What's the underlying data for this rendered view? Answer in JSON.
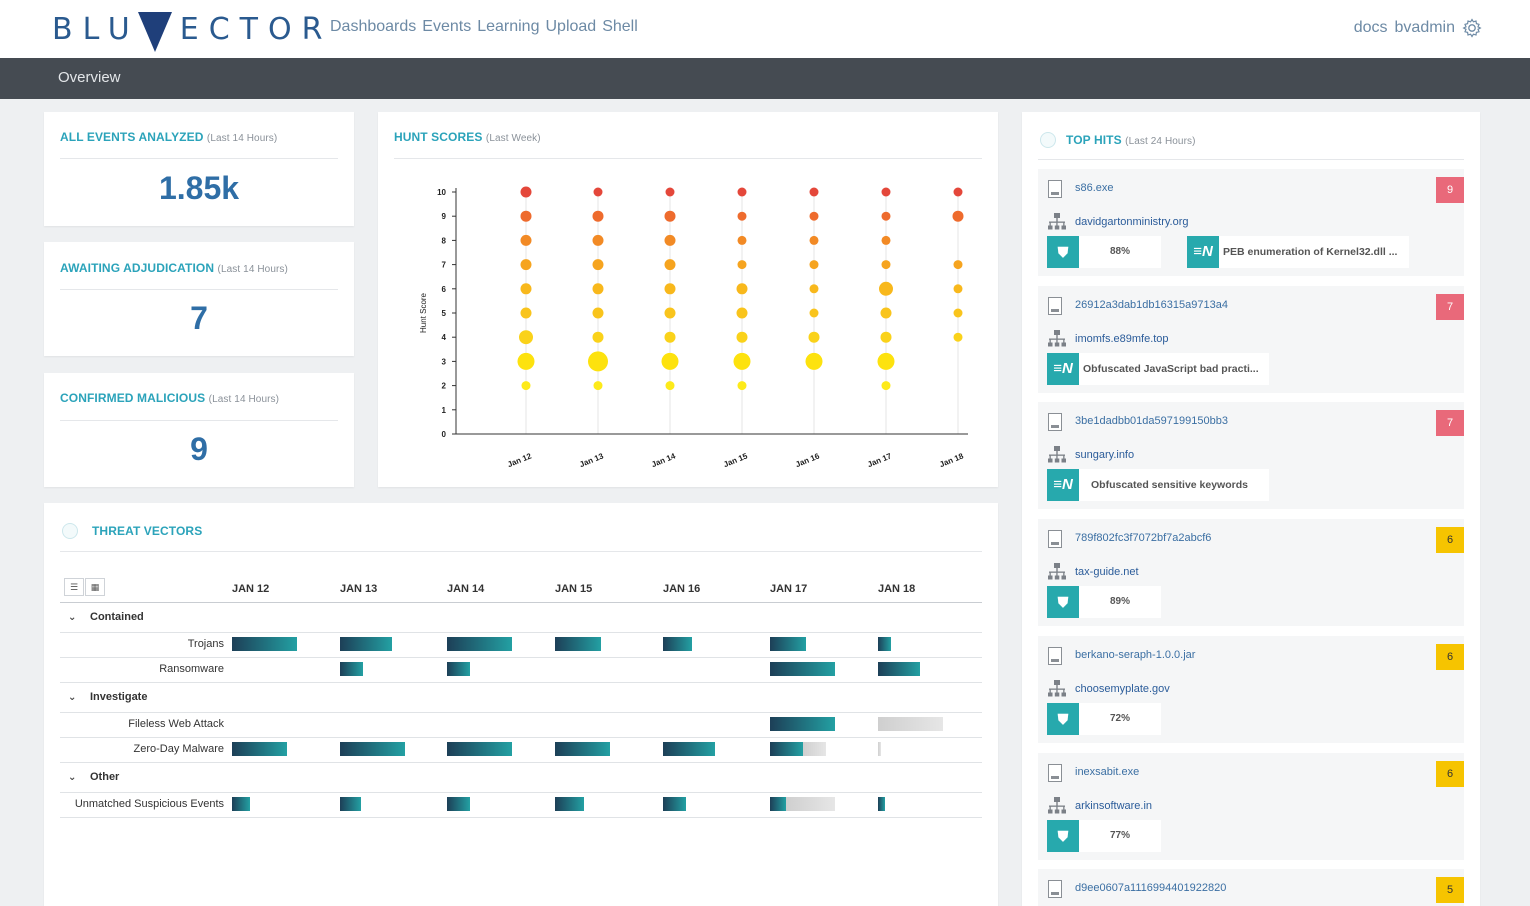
{
  "header": {
    "logo_text_left": "BLU",
    "logo_text_right": "ECTOR",
    "nav": [
      "Dashboards",
      "Events",
      "Learning",
      "Upload",
      "Shell"
    ],
    "user_links": [
      "docs",
      "bvadmin"
    ],
    "settings_icon": "gear-icon"
  },
  "subheader": {
    "title": "Overview"
  },
  "stats": [
    {
      "title": "ALL EVENTS ANALYZED",
      "period": "(Last 14 Hours)",
      "value": "1.85k"
    },
    {
      "title": "AWAITING ADJUDICATION",
      "period": "(Last 14 Hours)",
      "value": "7"
    },
    {
      "title": "CONFIRMED MALICIOUS",
      "period": "(Last 14 Hours)",
      "value": "9"
    }
  ],
  "hunt_scores": {
    "title": "HUNT SCORES",
    "period": "(Last Week)"
  },
  "chart_data": {
    "type": "scatter",
    "ylabel": "Hunt Score",
    "ylim": [
      0,
      10
    ],
    "y_ticks": [
      "0",
      "1",
      "2",
      "3",
      "4",
      "5",
      "6",
      "7",
      "8",
      "9",
      "10"
    ],
    "categories": [
      "Jan 12",
      "Jan 13",
      "Jan 14",
      "Jan 15",
      "Jan 16",
      "Jan 17",
      "Jan 18"
    ],
    "points": [
      {
        "x": "Jan 12",
        "y": 10,
        "size": 2
      },
      {
        "x": "Jan 12",
        "y": 9,
        "size": 2
      },
      {
        "x": "Jan 12",
        "y": 8,
        "size": 2
      },
      {
        "x": "Jan 12",
        "y": 7,
        "size": 2
      },
      {
        "x": "Jan 12",
        "y": 6,
        "size": 2
      },
      {
        "x": "Jan 12",
        "y": 5,
        "size": 2
      },
      {
        "x": "Jan 12",
        "y": 4,
        "size": 3
      },
      {
        "x": "Jan 12",
        "y": 3,
        "size": 4
      },
      {
        "x": "Jan 12",
        "y": 2,
        "size": 1
      },
      {
        "x": "Jan 13",
        "y": 10,
        "size": 1
      },
      {
        "x": "Jan 13",
        "y": 9,
        "size": 2
      },
      {
        "x": "Jan 13",
        "y": 8,
        "size": 2
      },
      {
        "x": "Jan 13",
        "y": 7,
        "size": 2
      },
      {
        "x": "Jan 13",
        "y": 6,
        "size": 2
      },
      {
        "x": "Jan 13",
        "y": 5,
        "size": 2
      },
      {
        "x": "Jan 13",
        "y": 4,
        "size": 2
      },
      {
        "x": "Jan 13",
        "y": 3,
        "size": 5
      },
      {
        "x": "Jan 13",
        "y": 2,
        "size": 1
      },
      {
        "x": "Jan 14",
        "y": 10,
        "size": 1
      },
      {
        "x": "Jan 14",
        "y": 9,
        "size": 2
      },
      {
        "x": "Jan 14",
        "y": 8,
        "size": 2
      },
      {
        "x": "Jan 14",
        "y": 7,
        "size": 2
      },
      {
        "x": "Jan 14",
        "y": 6,
        "size": 2
      },
      {
        "x": "Jan 14",
        "y": 5,
        "size": 2
      },
      {
        "x": "Jan 14",
        "y": 4,
        "size": 2
      },
      {
        "x": "Jan 14",
        "y": 3,
        "size": 4
      },
      {
        "x": "Jan 14",
        "y": 2,
        "size": 1
      },
      {
        "x": "Jan 15",
        "y": 10,
        "size": 1
      },
      {
        "x": "Jan 15",
        "y": 9,
        "size": 1
      },
      {
        "x": "Jan 15",
        "y": 8,
        "size": 1
      },
      {
        "x": "Jan 15",
        "y": 7,
        "size": 1
      },
      {
        "x": "Jan 15",
        "y": 6,
        "size": 2
      },
      {
        "x": "Jan 15",
        "y": 5,
        "size": 2
      },
      {
        "x": "Jan 15",
        "y": 4,
        "size": 2
      },
      {
        "x": "Jan 15",
        "y": 3,
        "size": 4
      },
      {
        "x": "Jan 15",
        "y": 2,
        "size": 1
      },
      {
        "x": "Jan 16",
        "y": 10,
        "size": 1
      },
      {
        "x": "Jan 16",
        "y": 9,
        "size": 1
      },
      {
        "x": "Jan 16",
        "y": 8,
        "size": 1
      },
      {
        "x": "Jan 16",
        "y": 7,
        "size": 1
      },
      {
        "x": "Jan 16",
        "y": 6,
        "size": 1
      },
      {
        "x": "Jan 16",
        "y": 5,
        "size": 1
      },
      {
        "x": "Jan 16",
        "y": 4,
        "size": 2
      },
      {
        "x": "Jan 16",
        "y": 3,
        "size": 4
      },
      {
        "x": "Jan 17",
        "y": 10,
        "size": 1
      },
      {
        "x": "Jan 17",
        "y": 9,
        "size": 1
      },
      {
        "x": "Jan 17",
        "y": 8,
        "size": 1
      },
      {
        "x": "Jan 17",
        "y": 7,
        "size": 1
      },
      {
        "x": "Jan 17",
        "y": 6,
        "size": 3
      },
      {
        "x": "Jan 17",
        "y": 5,
        "size": 2
      },
      {
        "x": "Jan 17",
        "y": 4,
        "size": 2
      },
      {
        "x": "Jan 17",
        "y": 3,
        "size": 4
      },
      {
        "x": "Jan 17",
        "y": 2,
        "size": 1
      },
      {
        "x": "Jan 18",
        "y": 10,
        "size": 1
      },
      {
        "x": "Jan 18",
        "y": 9,
        "size": 2
      },
      {
        "x": "Jan 18",
        "y": 7,
        "size": 1
      },
      {
        "x": "Jan 18",
        "y": 6,
        "size": 1
      },
      {
        "x": "Jan 18",
        "y": 5,
        "size": 1
      },
      {
        "x": "Jan 18",
        "y": 4,
        "size": 1
      }
    ],
    "color_by_score": {
      "10": "#e4473a",
      "9": "#ee6b2d",
      "8": "#f28a25",
      "7": "#f6a41f",
      "6": "#f8b81c",
      "5": "#f9c41c",
      "4": "#fad21a",
      "3": "#fde20e",
      "2": "#fdea1a"
    },
    "grid": "vertical"
  },
  "threat_vectors": {
    "title": "THREAT VECTORS",
    "columns": [
      "JAN 12",
      "JAN 13",
      "JAN 14",
      "JAN 15",
      "JAN 16",
      "JAN 17",
      "JAN 18"
    ],
    "groups": [
      {
        "name": "Contained",
        "rows": [
          {
            "label": "Trojans",
            "bars": [
              [
                1,
                0
              ],
              [
                0.8,
                0
              ],
              [
                1,
                0
              ],
              [
                0.7,
                0
              ],
              [
                0.45,
                0
              ],
              [
                0.55,
                0
              ],
              [
                0.2,
                0
              ]
            ]
          },
          {
            "label": "Ransomware",
            "bars": [
              [
                0,
                0
              ],
              [
                0.35,
                0
              ],
              [
                0.35,
                0
              ],
              [
                0,
                0
              ],
              [
                0,
                0
              ],
              [
                1,
                0
              ],
              [
                0.65,
                0
              ]
            ]
          }
        ]
      },
      {
        "name": "Investigate",
        "rows": [
          {
            "label": "Fileless Web Attack",
            "bars": [
              [
                0,
                0
              ],
              [
                0,
                0
              ],
              [
                0,
                0
              ],
              [
                0,
                0
              ],
              [
                0,
                0
              ],
              [
                1,
                0
              ],
              [
                0,
                1
              ]
            ]
          },
          {
            "label": "Zero-Day Malware",
            "bars": [
              [
                0.85,
                0
              ],
              [
                1,
                0
              ],
              [
                1,
                0
              ],
              [
                0.85,
                0
              ],
              [
                0.8,
                0
              ],
              [
                0.5,
                0.35
              ],
              [
                0,
                0.05
              ]
            ]
          }
        ]
      },
      {
        "name": "Other",
        "rows": [
          {
            "label": "Unmatched Suspicious Events",
            "bars": [
              [
                0.28,
                0
              ],
              [
                0.32,
                0
              ],
              [
                0.35,
                0
              ],
              [
                0.45,
                0
              ],
              [
                0.35,
                0
              ],
              [
                0.25,
                0.75
              ],
              [
                0.1,
                0
              ]
            ]
          }
        ]
      }
    ]
  },
  "top_hits": {
    "title": "TOP HITS",
    "period": "(Last 24 Hours)",
    "items": [
      {
        "file": "s86.exe",
        "domain": "davidgartonministry.org",
        "score": "9",
        "level": "red",
        "pct": "88%",
        "desc": "PEB enumeration of Kernel32.dll ..."
      },
      {
        "file": "26912a3dab1db16315a9713a4",
        "domain": "imomfs.e89mfe.top",
        "score": "7",
        "level": "red",
        "pct": "",
        "desc": "Obfuscated JavaScript bad practi..."
      },
      {
        "file": "3be1dadbb01da597199150bb3",
        "domain": "sungary.info",
        "score": "7",
        "level": "red",
        "pct": "",
        "desc": "Obfuscated sensitive keywords"
      },
      {
        "file": "789f802fc3f7072bf7a2abcf6",
        "domain": "tax-guide.net",
        "score": "6",
        "level": "yellow",
        "pct": "89%",
        "desc": ""
      },
      {
        "file": "berkano-seraph-1.0.0.jar",
        "domain": "choosemyplate.gov",
        "score": "6",
        "level": "yellow",
        "pct": "72%",
        "desc": ""
      },
      {
        "file": "inexsabit.exe",
        "domain": "arkinsoftware.in",
        "score": "6",
        "level": "yellow",
        "pct": "77%",
        "desc": ""
      },
      {
        "file": "d9ee0607a1116994401922820",
        "domain": "",
        "score": "5",
        "level": "yellow",
        "pct": "",
        "desc": ""
      }
    ]
  },
  "colors": {
    "accent": "#2ba3ba",
    "brand": "#1f3f7a",
    "nav_text": "#6d8aa5",
    "subbar": "#454b52",
    "tile": "#27a9ad",
    "score_red": "#e9697a",
    "score_yellow": "#f6c400"
  }
}
